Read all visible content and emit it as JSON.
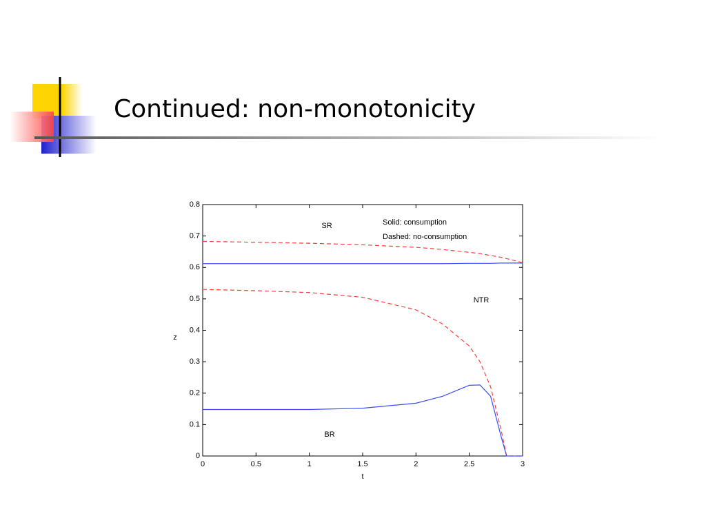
{
  "title": "Continued: non-monotonicity",
  "chart_data": {
    "type": "line",
    "x_label": "t",
    "y_label": "z",
    "annotations": [
      "SR",
      "NTR",
      "BR",
      "Solid: consumption",
      "Dashed: no-consumption"
    ],
    "x": [
      0,
      0.5,
      1,
      1.5,
      2,
      2.25,
      2.5,
      2.6,
      2.7,
      2.8,
      2.85,
      2.9,
      3
    ],
    "series": [
      {
        "color": "#ff3b3b",
        "linestyle": "dashed",
        "values": [
          0.683,
          0.68,
          0.677,
          0.672,
          0.664,
          0.657,
          0.648,
          0.644,
          0.638,
          0.632,
          0.628,
          0.624,
          0.615
        ]
      },
      {
        "color": "#3b4bff",
        "linestyle": "solid",
        "values": [
          0.612,
          0.612,
          0.612,
          0.612,
          0.612,
          0.612,
          0.613,
          0.613,
          0.613,
          0.614,
          0.614,
          0.614,
          0.614
        ]
      },
      {
        "color": "#ff3b3b",
        "linestyle": "dashed",
        "values": [
          0.53,
          0.526,
          0.52,
          0.505,
          0.465,
          0.42,
          0.35,
          0.3,
          0.22,
          0.08,
          0.0,
          0,
          0
        ]
      },
      {
        "color": "#3b4bff",
        "linestyle": "solid",
        "values": [
          0.148,
          0.148,
          0.148,
          0.152,
          0.168,
          0.19,
          0.225,
          0.226,
          0.19,
          0.06,
          0,
          0,
          0
        ]
      }
    ],
    "xlim": [
      0,
      3
    ],
    "xticks": [
      0,
      0.5,
      1,
      1.5,
      2,
      2.5,
      3
    ],
    "ylim": [
      0,
      0.8
    ],
    "yticks": [
      0,
      0.1,
      0.2,
      0.3,
      0.4,
      0.5,
      0.6,
      0.7,
      0.8
    ]
  }
}
